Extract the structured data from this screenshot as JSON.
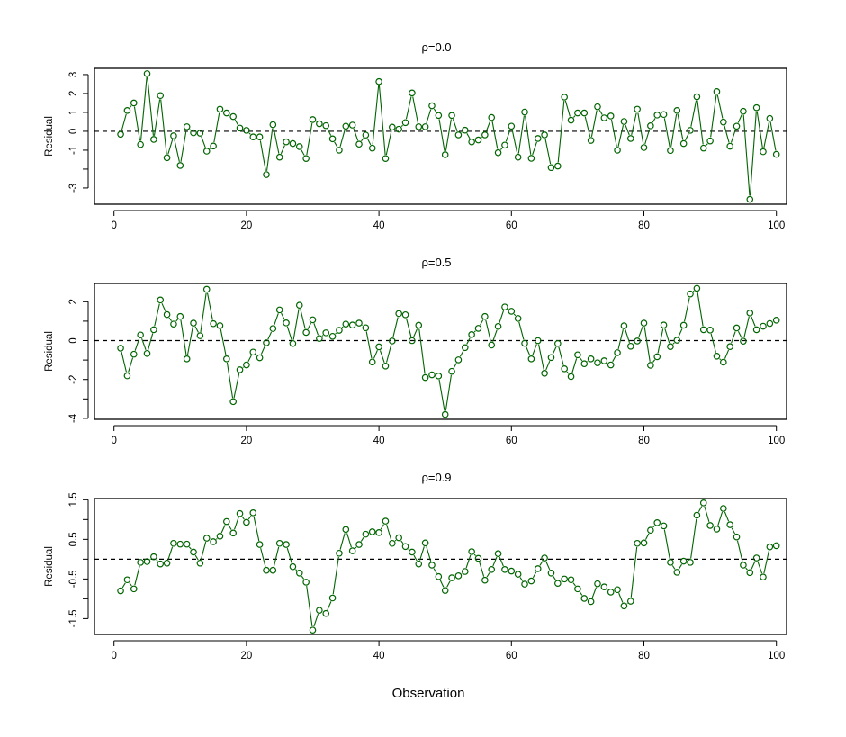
{
  "chart_data": [
    {
      "type": "line",
      "title": "ρ=0.0",
      "xlabel": "",
      "ylabel": "Residual",
      "xlim": [
        1,
        100
      ],
      "ylim": [
        -3.86,
        3.33
      ],
      "xticks": [
        0,
        20,
        40,
        60,
        80,
        100
      ],
      "xtick_labels": [
        "0",
        "20",
        "40",
        "60",
        "80",
        "100"
      ],
      "yticks": [
        -3,
        -2,
        -1,
        0,
        1,
        2,
        3
      ],
      "ytick_labels": [
        "-3",
        "",
        "-1",
        "0",
        "1",
        "2",
        "3"
      ],
      "reference_line": 0,
      "color": "#006400",
      "values": [
        -0.16,
        1.1,
        1.5,
        -0.7,
        3.05,
        -0.43,
        1.89,
        -1.4,
        -0.24,
        -1.81,
        0.24,
        -0.08,
        -0.1,
        -1.05,
        -0.78,
        1.17,
        0.97,
        0.78,
        0.17,
        0.05,
        -0.3,
        -0.3,
        -2.29,
        0.35,
        -1.37,
        -0.56,
        -0.65,
        -0.81,
        -1.44,
        0.62,
        0.4,
        0.3,
        -0.4,
        -1.0,
        0.27,
        0.33,
        -0.68,
        -0.2,
        -0.89,
        2.63,
        -1.44,
        0.22,
        0.11,
        0.46,
        2.03,
        0.24,
        0.24,
        1.35,
        0.84,
        -1.24,
        0.84,
        -0.19,
        0.06,
        -0.56,
        -0.46,
        -0.19,
        0.73,
        -1.13,
        -0.73,
        0.27,
        -1.37,
        1.02,
        -1.43,
        -0.38,
        -0.19,
        -1.92,
        -1.84,
        1.81,
        0.59,
        0.97,
        0.97,
        -0.48,
        1.3,
        0.71,
        0.81,
        -1.0,
        0.52,
        -0.38,
        1.17,
        -0.86,
        0.29,
        0.86,
        0.89,
        -1.02,
        1.1,
        -0.65,
        0.05,
        1.83,
        -0.89,
        -0.51,
        2.1,
        0.49,
        -0.79,
        0.27,
        1.06,
        -3.6,
        1.25,
        -1.08,
        0.68,
        -1.22
      ]
    },
    {
      "type": "line",
      "title": "ρ=0.5",
      "xlabel": "",
      "ylabel": "Residual",
      "xlim": [
        1,
        100
      ],
      "ylim": [
        -4.05,
        2.94
      ],
      "xticks": [
        0,
        20,
        40,
        60,
        80,
        100
      ],
      "xtick_labels": [
        "0",
        "20",
        "40",
        "60",
        "80",
        "100"
      ],
      "yticks": [
        -4,
        -3,
        -2,
        -1,
        0,
        1,
        2
      ],
      "ytick_labels": [
        "-4",
        "",
        "-2",
        "",
        "0",
        "",
        "2"
      ],
      "reference_line": 0,
      "color": "#006400",
      "values": [
        -0.39,
        -1.81,
        -0.7,
        0.29,
        -0.66,
        0.56,
        2.09,
        1.34,
        0.85,
        1.24,
        -0.94,
        0.9,
        0.25,
        2.64,
        0.87,
        0.77,
        -0.94,
        -3.14,
        -1.5,
        -1.25,
        -0.59,
        -0.88,
        -0.11,
        0.62,
        1.58,
        0.91,
        -0.15,
        1.82,
        0.42,
        1.07,
        0.11,
        0.4,
        0.22,
        0.53,
        0.85,
        0.8,
        0.9,
        0.66,
        -1.1,
        -0.32,
        -1.31,
        -0.02,
        1.39,
        1.33,
        0.0,
        0.79,
        -1.9,
        -1.76,
        -1.82,
        -3.8,
        -1.58,
        -0.99,
        -0.36,
        0.31,
        0.63,
        1.24,
        -0.23,
        0.73,
        1.73,
        1.51,
        1.14,
        -0.14,
        -0.94,
        0.0,
        -1.68,
        -0.87,
        -0.15,
        -1.45,
        -1.85,
        -0.73,
        -1.19,
        -0.94,
        -1.14,
        -1.04,
        -1.25,
        -0.62,
        0.76,
        -0.29,
        -0.02,
        0.9,
        -1.27,
        -0.83,
        0.8,
        -0.31,
        0.02,
        0.79,
        2.4,
        2.69,
        0.56,
        0.54,
        -0.8,
        -1.11,
        -0.31,
        0.65,
        -0.03,
        1.42,
        0.56,
        0.74,
        0.88,
        1.05
      ]
    },
    {
      "type": "line",
      "title": "ρ=0.9",
      "xlabel": "Observation",
      "ylabel": "Residual",
      "xlim": [
        1,
        100
      ],
      "ylim": [
        -1.9,
        1.53
      ],
      "xticks": [
        0,
        20,
        40,
        60,
        80,
        100
      ],
      "xtick_labels": [
        "0",
        "20",
        "40",
        "60",
        "80",
        "100"
      ],
      "yticks": [
        -1.5,
        -1.0,
        -0.5,
        0,
        0.5,
        1.0,
        1.5
      ],
      "ytick_labels": [
        "-1.5",
        "",
        "-0.5",
        "",
        "0.5",
        "",
        "1.5"
      ],
      "reference_line": 0,
      "color": "#006400",
      "values": [
        -0.8,
        -0.52,
        -0.75,
        -0.08,
        -0.06,
        0.06,
        -0.12,
        -0.1,
        0.4,
        0.38,
        0.38,
        0.18,
        -0.1,
        0.53,
        0.44,
        0.58,
        0.95,
        0.66,
        1.15,
        0.93,
        1.17,
        0.37,
        -0.28,
        -0.28,
        0.4,
        0.37,
        -0.19,
        -0.35,
        -0.58,
        -1.79,
        -1.29,
        -1.37,
        -0.98,
        0.15,
        0.75,
        0.21,
        0.37,
        0.63,
        0.69,
        0.67,
        0.96,
        0.4,
        0.54,
        0.32,
        0.18,
        -0.12,
        0.41,
        -0.15,
        -0.44,
        -0.79,
        -0.47,
        -0.42,
        -0.31,
        0.19,
        0.02,
        -0.53,
        -0.26,
        0.14,
        -0.26,
        -0.3,
        -0.38,
        -0.63,
        -0.55,
        -0.24,
        0.03,
        -0.35,
        -0.61,
        -0.5,
        -0.52,
        -0.75,
        -0.99,
        -1.07,
        -0.62,
        -0.7,
        -0.83,
        -0.77,
        -1.18,
        -1.06,
        0.4,
        0.41,
        0.73,
        0.92,
        0.84,
        -0.08,
        -0.33,
        -0.05,
        -0.08,
        1.11,
        1.42,
        0.85,
        0.76,
        1.28,
        0.87,
        0.56,
        -0.15,
        -0.34,
        0.03,
        -0.45,
        0.31,
        0.34
      ]
    }
  ]
}
